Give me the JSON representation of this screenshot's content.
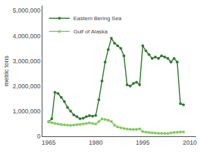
{
  "chart_data": {
    "type": "line",
    "y_label": "metric tons",
    "series": [
      {
        "name": "Eastern Bering Sea",
        "color": "#2d7a2d",
        "marker": "circle",
        "x": [
          1965,
          1966,
          1967,
          1968,
          1969,
          1970,
          1971,
          1972,
          1973,
          1974,
          1975,
          1976,
          1977,
          1978,
          1979,
          1980,
          1981,
          1982,
          1983,
          1984,
          1985,
          1986,
          1987,
          1988,
          1989,
          1990,
          1991,
          1992,
          1993,
          1994,
          1995,
          1996,
          1997,
          1998,
          1999,
          2000,
          2001,
          2002,
          2003,
          2004,
          2005,
          2006,
          2007,
          2008
        ],
        "values": [
          580000,
          700000,
          1750000,
          1700000,
          1550000,
          1380000,
          1150000,
          1000000,
          850000,
          780000,
          700000,
          720000,
          780000,
          820000,
          800000,
          830000,
          1450000,
          2200000,
          2950000,
          3450000,
          3900000,
          3700000,
          3600000,
          3500000,
          3200000,
          2050000,
          2000000,
          2100000,
          2150000,
          2050000,
          3600000,
          3400000,
          3250000,
          3100000,
          3150000,
          3100000,
          3200000,
          3150000,
          3100000,
          2950000,
          3100000,
          2950000,
          1300000,
          1250000
        ]
      },
      {
        "name": "Gulf of Alaska",
        "color": "#7dcc5a",
        "marker": "circle",
        "x": [
          1965,
          1966,
          1967,
          1968,
          1969,
          1970,
          1971,
          1972,
          1973,
          1974,
          1975,
          1976,
          1977,
          1978,
          1979,
          1980,
          1981,
          1982,
          1983,
          1984,
          1985,
          1986,
          1987,
          1988,
          1989,
          1990,
          1991,
          1992,
          1993,
          1994,
          1995,
          1996,
          1997,
          1998,
          1999,
          2000,
          2001,
          2002,
          2003,
          2004,
          2005,
          2006,
          2007,
          2008
        ],
        "values": [
          580000,
          540000,
          510000,
          490000,
          470000,
          455000,
          445000,
          435000,
          450000,
          460000,
          470000,
          490000,
          510000,
          530000,
          510000,
          490000,
          590000,
          690000,
          670000,
          640000,
          590000,
          440000,
          370000,
          340000,
          310000,
          290000,
          280000,
          270000,
          280000,
          300000,
          190000,
          165000,
          150000,
          140000,
          130000,
          120000,
          120000,
          115000,
          110000,
          140000,
          150000,
          160000,
          170000,
          170000
        ]
      }
    ],
    "xlim": [
      1963,
      2012
    ],
    "xticks": [
      1965,
      1980,
      1995,
      2010
    ],
    "ylim": [
      0,
      5200000
    ],
    "yticks": [
      0,
      {
        "value": 1000000,
        "label": "1,000,000"
      },
      {
        "value": 2000000,
        "label": "2,000,000"
      },
      {
        "value": 3000000,
        "label": "3,000,000"
      },
      {
        "value": 4000000,
        "label": "4,000,000"
      },
      {
        "value": 5000000,
        "label": "5,000,000"
      }
    ],
    "grid": false,
    "legend": "upper left"
  }
}
